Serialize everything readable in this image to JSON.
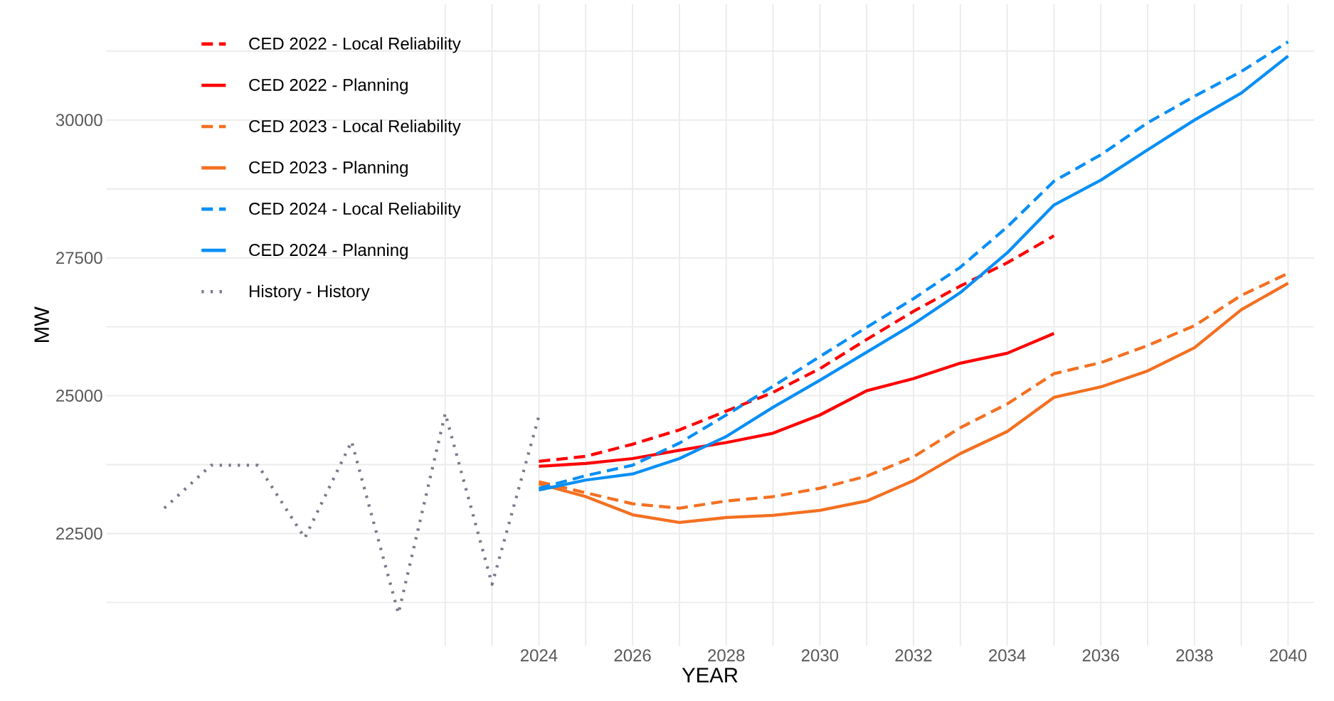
{
  "chart_data": {
    "type": "line",
    "xlabel": "YEAR",
    "ylabel": "MW",
    "xlim": [
      2014.76,
      2040.55
    ],
    "ylim": [
      20460,
      32100
    ],
    "xticks": [
      {
        "value": 2022,
        "label": null
      },
      {
        "value": 2023,
        "label": null
      },
      2024,
      {
        "value": 2025,
        "label": null
      },
      2026,
      {
        "value": 2027,
        "label": null
      },
      2028,
      {
        "value": 2029,
        "label": null
      },
      2030,
      {
        "value": 2031,
        "label": null
      },
      2032,
      {
        "value": 2033,
        "label": null
      },
      2034,
      {
        "value": 2035,
        "label": null
      },
      2036,
      {
        "value": 2037,
        "label": null
      },
      2038,
      {
        "value": 2039,
        "label": null
      },
      2040
    ],
    "yticks": [
      {
        "value": 21250,
        "label": null
      },
      22500,
      {
        "value": 23750,
        "label": null
      },
      25000,
      {
        "value": 26250,
        "label": null
      },
      27500,
      {
        "value": 28750,
        "label": null
      },
      30000,
      {
        "value": 31250,
        "label": null
      }
    ],
    "grid": true,
    "legend": "top left",
    "series": [
      {
        "name": "CED 2022 - Local Reliability",
        "color": "#ff0000",
        "line_style": "dashed",
        "x": [
          2024,
          2025,
          2026,
          2027,
          2028,
          2029,
          2030,
          2031,
          2032,
          2033,
          2034,
          2035
        ],
        "values": [
          23810,
          23900,
          24120,
          24380,
          24720,
          25060,
          25490,
          26020,
          26530,
          26990,
          27410,
          27900
        ]
      },
      {
        "name": "CED 2022 - Planning",
        "color": "#ff0000",
        "line_style": "solid",
        "x": [
          2024,
          2025,
          2026,
          2027,
          2028,
          2029,
          2030,
          2031,
          2032,
          2033,
          2034,
          2035
        ],
        "values": [
          23720,
          23770,
          23860,
          24010,
          24150,
          24320,
          24650,
          25090,
          25310,
          25590,
          25770,
          26130
        ]
      },
      {
        "name": "CED 2023 - Local Reliability",
        "color": "#f37021",
        "line_style": "dashed",
        "x": [
          2024,
          2025,
          2026,
          2027,
          2028,
          2029,
          2030,
          2031,
          2032,
          2033,
          2034,
          2035,
          2036,
          2037,
          2038,
          2039,
          2040
        ],
        "values": [
          23440,
          23240,
          23040,
          22960,
          23090,
          23170,
          23320,
          23540,
          23890,
          24420,
          24850,
          25400,
          25600,
          25910,
          26270,
          26820,
          27220
        ]
      },
      {
        "name": "CED 2023 - Planning",
        "color": "#f37021",
        "line_style": "solid",
        "x": [
          2024,
          2025,
          2026,
          2027,
          2028,
          2029,
          2030,
          2031,
          2032,
          2033,
          2034,
          2035,
          2036,
          2037,
          2038,
          2039,
          2040
        ],
        "values": [
          23400,
          23170,
          22840,
          22700,
          22790,
          22830,
          22920,
          23090,
          23460,
          23950,
          24350,
          24970,
          25160,
          25450,
          25870,
          26560,
          27040
        ]
      },
      {
        "name": "CED 2024 - Local Reliability",
        "color": "#0a8ff5",
        "line_style": "dashed",
        "x": [
          2024,
          2025,
          2026,
          2027,
          2028,
          2029,
          2030,
          2031,
          2032,
          2033,
          2034,
          2035,
          2036,
          2037,
          2038,
          2039,
          2040
        ],
        "values": [
          23320,
          23550,
          23740,
          24140,
          24650,
          25170,
          25710,
          26240,
          26760,
          27330,
          28060,
          28890,
          29370,
          29950,
          30430,
          30880,
          31420
        ]
      },
      {
        "name": "CED 2024 - Planning",
        "color": "#0a8ff5",
        "line_style": "solid",
        "x": [
          2024,
          2025,
          2026,
          2027,
          2028,
          2029,
          2030,
          2031,
          2032,
          2033,
          2034,
          2035,
          2036,
          2037,
          2038,
          2039,
          2040
        ],
        "values": [
          23290,
          23470,
          23580,
          23860,
          24260,
          24790,
          25280,
          25790,
          26300,
          26870,
          27590,
          28460,
          28910,
          29460,
          30000,
          30490,
          31160
        ]
      },
      {
        "name": "History - History",
        "color": "#7a7a8c",
        "line_style": "dotted",
        "x": [
          2016,
          2017,
          2018,
          2019,
          2020,
          2021,
          2022,
          2023,
          2024
        ],
        "values": [
          22960,
          23740,
          23740,
          22420,
          24170,
          21050,
          24680,
          21580,
          24630
        ]
      }
    ]
  }
}
